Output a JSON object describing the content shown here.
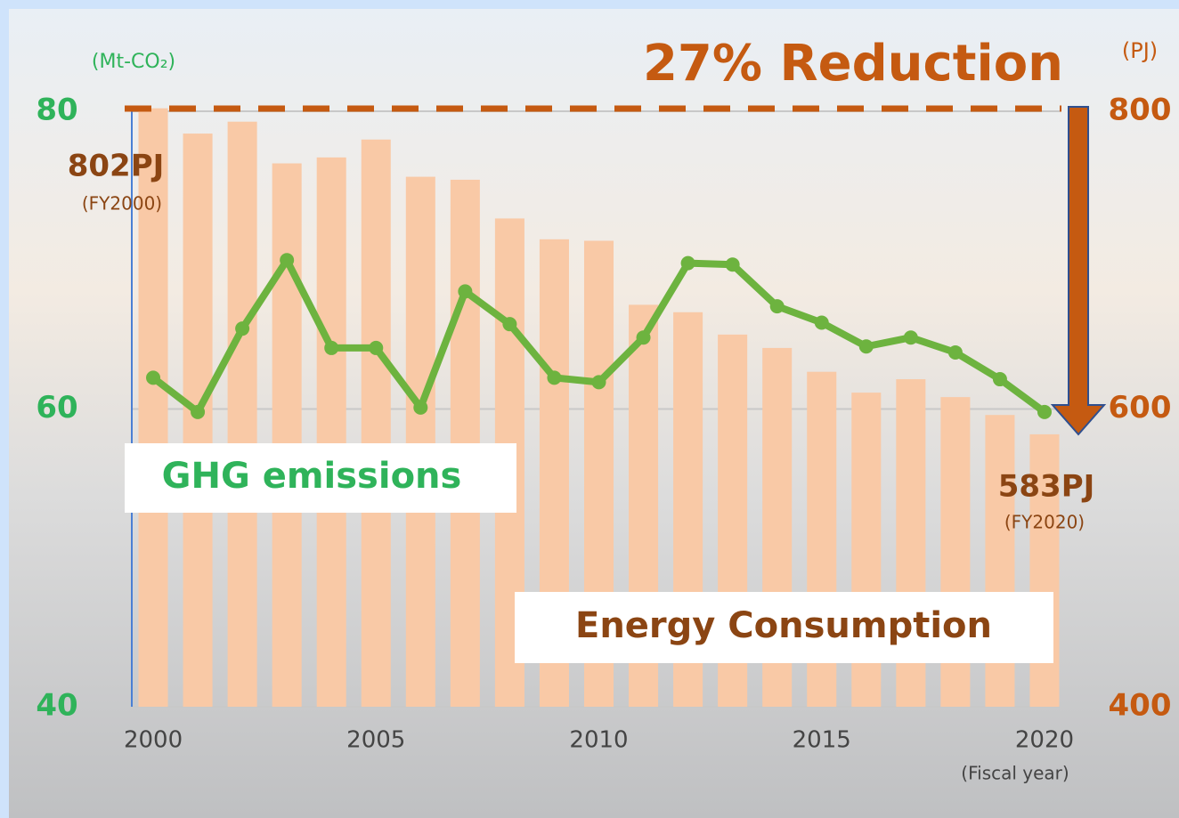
{
  "chart_data": {
    "type": "bar_line",
    "title": "27% Reduction",
    "y_label": "(Mt-CO₂)",
    "y2_label": "(PJ)",
    "x_label": "(Fiscal year)",
    "annotations": [
      "802PJ",
      "(FY2000)",
      "583PJ",
      "(FY2020)"
    ],
    "x": [
      2000,
      2001,
      2002,
      2003,
      2004,
      2005,
      2006,
      2007,
      2008,
      2009,
      2010,
      2011,
      2012,
      2013,
      2014,
      2015,
      2016,
      2017,
      2018,
      2019,
      2020
    ],
    "xlim": [
      1999.5,
      2020.5
    ],
    "xticks": [
      2000,
      2005,
      2010,
      2015,
      2020
    ],
    "ylim": [
      40,
      80
    ],
    "yticks": [
      40,
      60,
      80
    ],
    "y2lim": [
      400,
      800
    ],
    "y2ticks": [
      400,
      600,
      800
    ],
    "grid": true,
    "series": [
      {
        "name": "Energy Consumption",
        "type": "bar",
        "axis": "y2",
        "color": "#f9c9a6",
        "values": [
          802,
          785,
          793,
          765,
          769,
          781,
          756,
          754,
          728,
          714,
          713,
          670,
          665,
          650,
          641,
          625,
          611,
          620,
          608,
          596,
          583
        ]
      },
      {
        "name": "GHG emissions",
        "type": "line",
        "color": "#6db33f",
        "values": [
          62.1,
          59.8,
          65.4,
          70.0,
          64.1,
          64.1,
          60.1,
          67.9,
          65.7,
          62.1,
          61.8,
          64.8,
          69.8,
          69.7,
          66.9,
          65.8,
          64.2,
          64.8,
          63.8,
          62.0,
          59.8
        ]
      }
    ]
  }
}
